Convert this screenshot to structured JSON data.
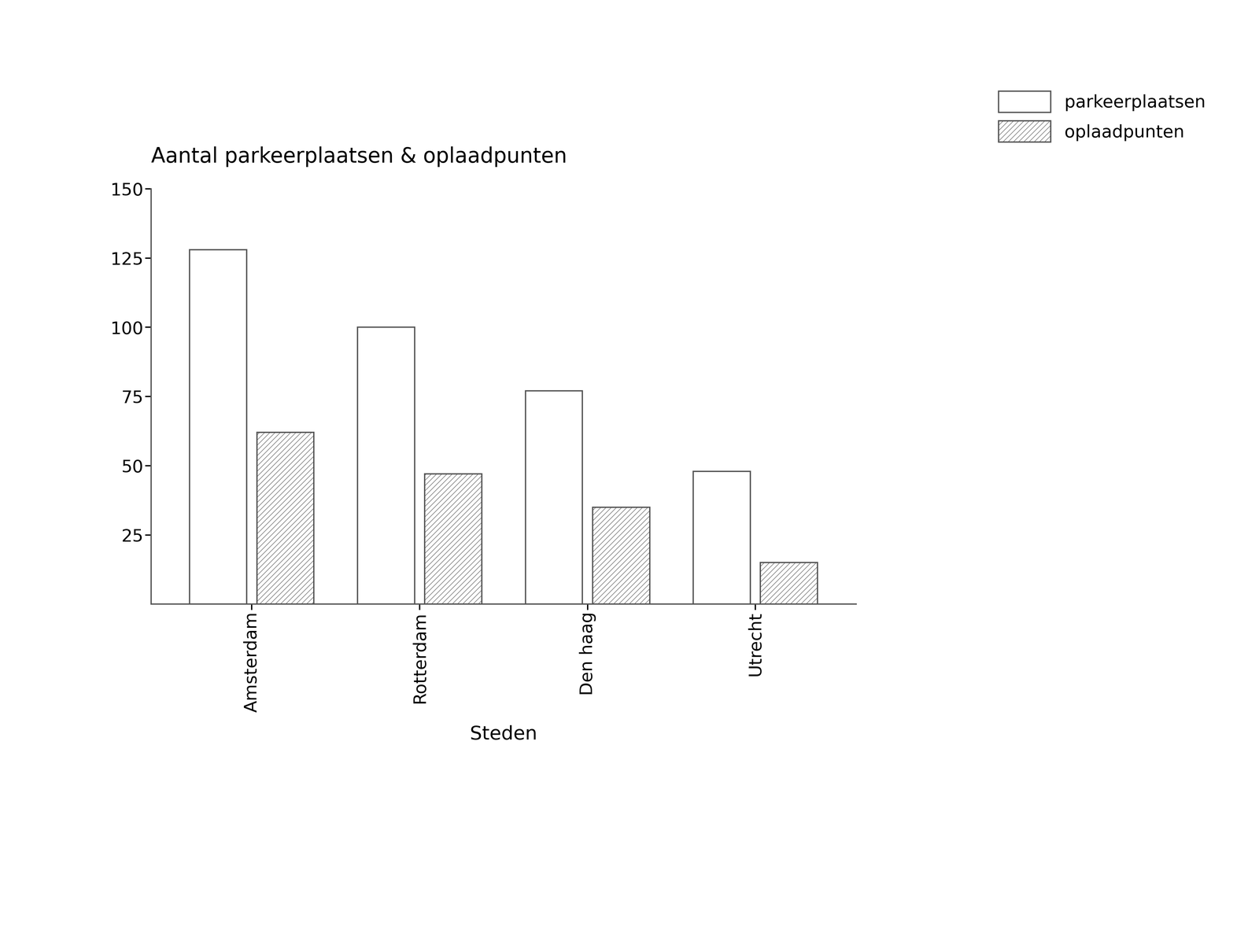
{
  "chart_data": {
    "type": "bar",
    "title": "Aantal parkeerplaatsen & oplaadpunten",
    "x_label": "Steden",
    "categories": [
      "Amsterdam",
      "Rotterdam",
      "Den haag",
      "Utrecht"
    ],
    "series": [
      {
        "name": "parkeerplaatsen",
        "color": "#ffffff",
        "values": [
          128,
          100,
          77,
          48
        ]
      },
      {
        "name": "oplaadpunten",
        "color": "#ffffff",
        "values": [
          62,
          47,
          35,
          15
        ]
      }
    ],
    "ylim": [
      0,
      150
    ],
    "yticks": [
      25,
      50,
      75,
      100,
      125,
      150
    ],
    "legend": "upper right",
    "grid": false
  }
}
